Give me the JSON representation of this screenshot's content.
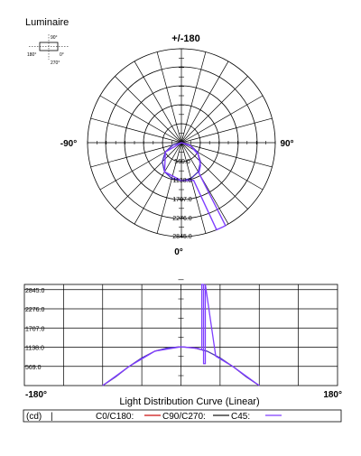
{
  "header": {
    "title": "Luminaire",
    "legend_icon": {
      "top": "90°",
      "left": "180°",
      "right": "0°",
      "bottom": "270°"
    }
  },
  "polar": {
    "top_label": "+/-180",
    "left_label": "-90°",
    "right_label": "90°",
    "bottom_label": "0°",
    "ring_labels": [
      "569.0",
      "1138.0",
      "1707.0",
      "2276.0",
      "2845.0"
    ]
  },
  "linear": {
    "y_labels": [
      "569.0",
      "1138.0",
      "1707.0",
      "2276.0",
      "2845.0"
    ],
    "x_left": "-180°",
    "x_right": "180°",
    "caption": "Light Distribution Curve (Linear)"
  },
  "legend": {
    "unit": "(cd)",
    "separator": "|",
    "c0": "C0/C180:",
    "c90": "C90/C270:",
    "c45": "C45:"
  },
  "colors": {
    "c0": "#cc1010",
    "c90": "#1a1a1a",
    "c45": "#7f3fff",
    "c90_curve": "#3a3ac8",
    "grid": "#000000"
  },
  "chart_data": [
    {
      "type": "polar",
      "title": "",
      "r_max": 2845,
      "r_ticks": [
        569,
        1138,
        1707,
        2276,
        2845
      ],
      "series": [
        {
          "name": "C0/C180",
          "angles_deg": [
            -90,
            -75,
            -60,
            -45,
            -30,
            -15,
            0,
            15,
            30,
            45,
            60,
            75,
            90
          ],
          "values": [
            0,
            260,
            560,
            820,
            1020,
            1120,
            1150,
            1120,
            1020,
            820,
            560,
            260,
            0
          ]
        },
        {
          "name": "C90/C270",
          "angles_deg": [
            -90,
            -75,
            -60,
            -45,
            -30,
            -15,
            0,
            15,
            30,
            45,
            60,
            75,
            90
          ],
          "values": [
            0,
            260,
            560,
            820,
            1020,
            1120,
            1150,
            1120,
            1020,
            820,
            560,
            260,
            0
          ]
        },
        {
          "name": "C45",
          "angles_deg": [
            -90,
            -60,
            -30,
            0,
            14,
            18,
            22,
            24,
            26,
            28,
            30,
            40,
            55,
            70,
            90
          ],
          "values": [
            0,
            560,
            1020,
            1150,
            1180,
            1200,
            2845,
            2845,
            2845,
            2845,
            1060,
            900,
            620,
            300,
            0
          ]
        }
      ]
    },
    {
      "type": "line",
      "title": "Light Distribution Curve (Linear)",
      "xlim": [
        -180,
        180
      ],
      "ylim": [
        0,
        3000
      ],
      "y_ticks": [
        569,
        1138,
        1707,
        2276,
        2845
      ],
      "series": [
        {
          "name": "C0/C180",
          "x": [
            -90,
            -75,
            -60,
            -45,
            -30,
            -15,
            0,
            15,
            30,
            45,
            60,
            75,
            90
          ],
          "values": [
            0,
            260,
            560,
            820,
            1020,
            1120,
            1150,
            1120,
            1020,
            820,
            560,
            260,
            0
          ]
        },
        {
          "name": "C90/C270",
          "x": [
            -90,
            -75,
            -60,
            -45,
            -30,
            -15,
            0,
            15,
            30,
            45,
            60,
            75,
            90
          ],
          "values": [
            0,
            260,
            560,
            820,
            1020,
            1120,
            1150,
            1120,
            1020,
            820,
            560,
            260,
            0
          ]
        },
        {
          "name": "C45",
          "x": [
            -90,
            -60,
            -30,
            0,
            20,
            24,
            24,
            26,
            26,
            28,
            28,
            40,
            60,
            90
          ],
          "values": [
            0,
            560,
            1020,
            1150,
            1100,
            1060,
            3000,
            3000,
            650,
            650,
            3000,
            870,
            560,
            0
          ]
        }
      ]
    }
  ]
}
